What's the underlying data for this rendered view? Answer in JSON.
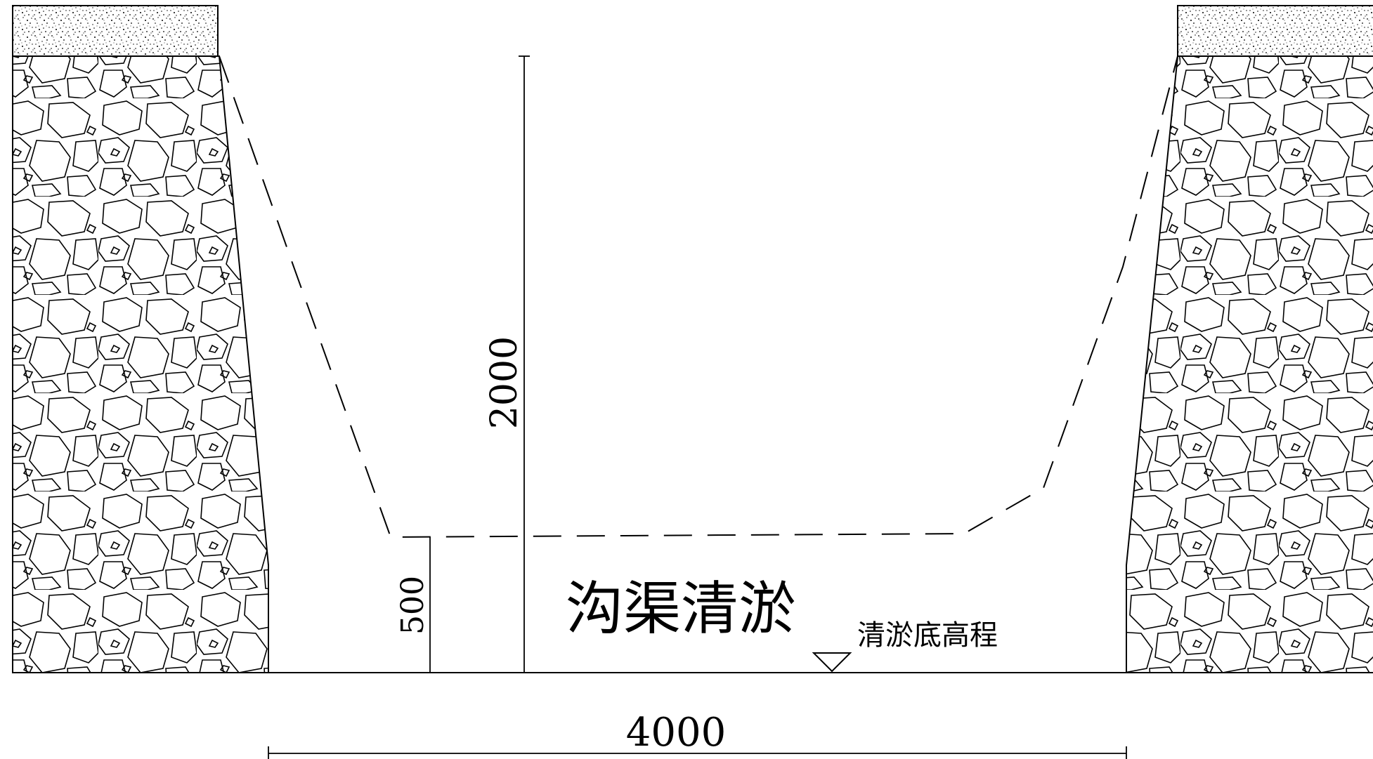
{
  "drawing": {
    "title": "沟渠清淤",
    "elevation_label": "清淤底高程",
    "dim_total_height": "2000",
    "dim_bottom_height": "500",
    "dim_width": "4000",
    "colors": {
      "line": "#000000",
      "background": "#ffffff"
    }
  }
}
